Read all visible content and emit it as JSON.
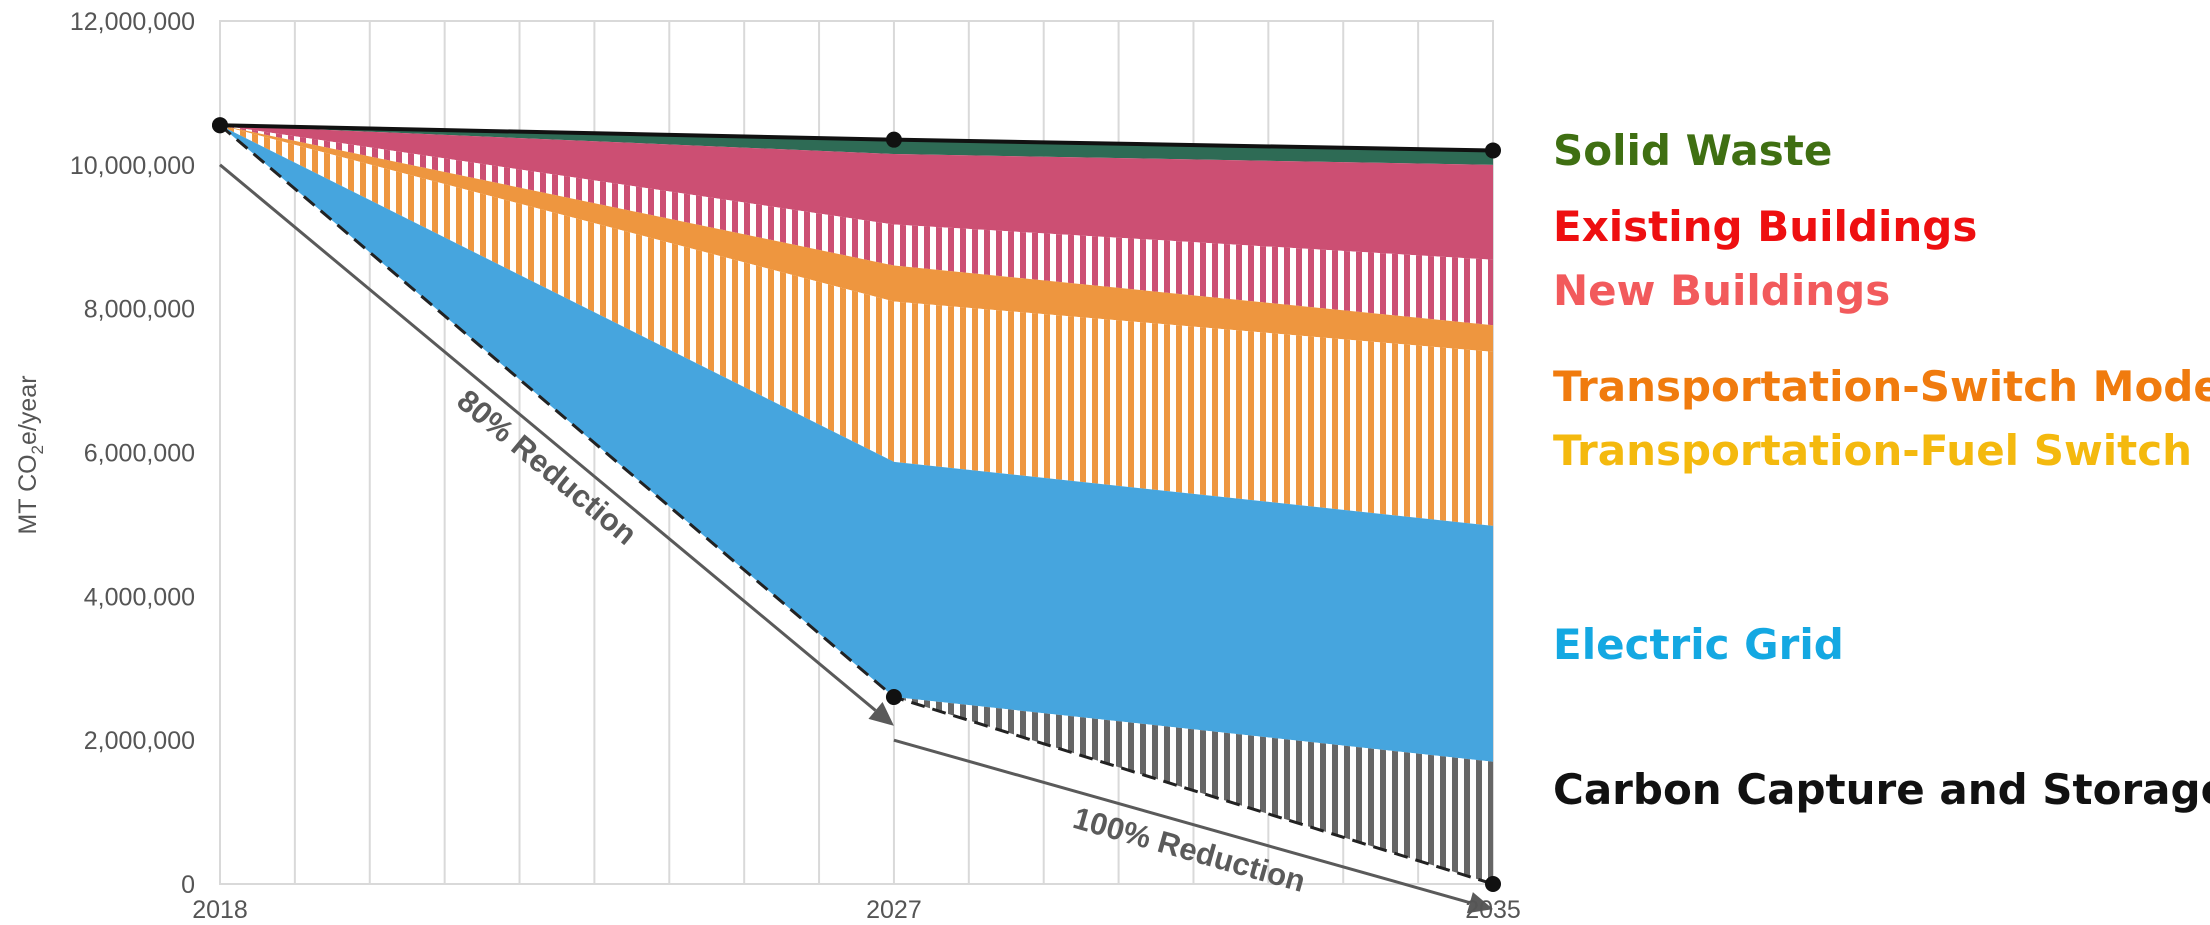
{
  "chart_data": {
    "type": "area",
    "ylabel": "MT CO2e/year",
    "ylabel_main": "MT CO",
    "ylabel_sub": "2",
    "ylabel_tail": "e/year",
    "x": [
      2018,
      2027,
      2035
    ],
    "x_tick_labels": [
      "2018",
      "2027",
      "2035"
    ],
    "ylim": [
      0,
      12000000
    ],
    "y_ticks": [
      0,
      2000000,
      4000000,
      6000000,
      8000000,
      10000000,
      12000000
    ],
    "y_tick_labels": [
      "0",
      "2,000,000",
      "4,000,000",
      "6,000,000",
      "8,000,000",
      "10,000,000",
      "12,000,000"
    ],
    "grid": "vertical",
    "series": [
      {
        "name": "Solid Waste",
        "color": "#2e6b55",
        "lower": [
          10550000,
          10150000,
          10000000
        ],
        "upper": [
          10550000,
          10350000,
          10200000
        ],
        "pattern": "solid"
      },
      {
        "name": "Existing Buildings",
        "color": "#cc4f73",
        "lower": [
          10550000,
          9170000,
          8680000
        ],
        "upper": [
          10550000,
          10150000,
          10000000
        ],
        "pattern": "solid"
      },
      {
        "name": "New Buildings",
        "color": "#cc4f73",
        "lower": [
          10550000,
          8600000,
          7770000
        ],
        "upper": [
          10550000,
          9170000,
          8680000
        ],
        "pattern": "stripes"
      },
      {
        "name": "Transportation-Switch Mode",
        "color": "#ee963f",
        "lower": [
          10550000,
          8100000,
          7400000
        ],
        "upper": [
          10550000,
          8600000,
          7770000
        ],
        "pattern": "solid"
      },
      {
        "name": "Transportation-Fuel Switch",
        "color": "#ee963f",
        "lower": [
          10550000,
          5870000,
          4980000
        ],
        "upper": [
          10550000,
          8100000,
          7400000
        ],
        "pattern": "stripes"
      },
      {
        "name": "Electric Grid",
        "color": "#46a5de",
        "lower": [
          10550000,
          2600000,
          1700000
        ],
        "upper": [
          10550000,
          5870000,
          4980000
        ],
        "pattern": "solid"
      },
      {
        "name": "Carbon Capture and Storage",
        "color": "#666666",
        "lower": [
          10550000,
          2600000,
          0
        ],
        "upper": [
          10550000,
          2600000,
          1700000
        ],
        "pattern": "stripes"
      }
    ],
    "total_line": {
      "x": [
        2018,
        2027,
        2035
      ],
      "y": [
        10550000,
        10350000,
        10200000
      ]
    },
    "target_line": {
      "x": [
        2018,
        2027,
        2035
      ],
      "y": [
        10550000,
        2600000,
        0
      ]
    },
    "annotations": [
      {
        "text": "80% Reduction",
        "from": [
          2018,
          10000000
        ],
        "to": [
          2027,
          2200000
        ]
      },
      {
        "text": "100% Reduction",
        "from": [
          2027,
          2000000
        ],
        "to": [
          2035,
          -350000
        ]
      }
    ],
    "legend": [
      {
        "label": "Solid Waste",
        "color": "#3f6f12"
      },
      {
        "label": "Existing Buildings",
        "color": "#ee0f10"
      },
      {
        "label": "New Buildings",
        "color": "#f25a5c"
      },
      {
        "label": "Transportation-Switch Mode",
        "color": "#f07b0e"
      },
      {
        "label": "Transportation-Fuel Switch",
        "color": "#f4b90e"
      },
      {
        "label": "Electric Grid",
        "color": "#14a8e2"
      },
      {
        "label": "Carbon Capture and Storage",
        "color": "#111111"
      }
    ]
  }
}
